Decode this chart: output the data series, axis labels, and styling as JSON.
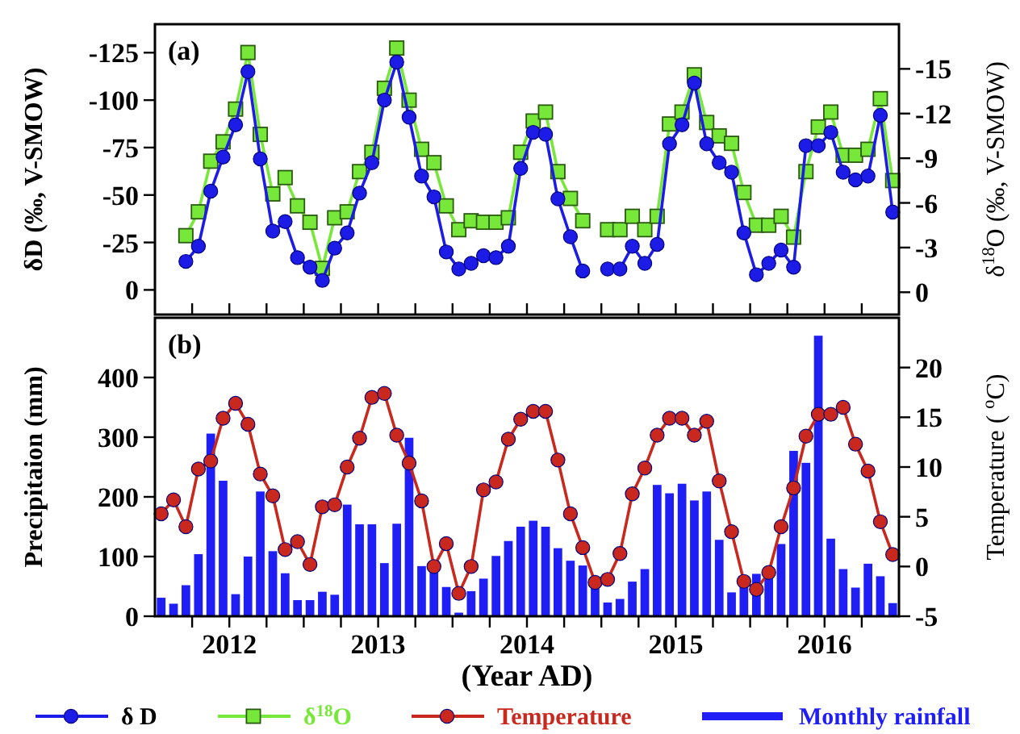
{
  "chart_data": [
    {
      "type": "line",
      "annotations": [
        "(a)"
      ],
      "ylabel": "δD (‰, V-SMOW)",
      "y2label": "δ$^{18}$O (‰, V-SMOW)",
      "x": [
        2011.708,
        2011.792,
        2011.875,
        2011.958,
        2012.042,
        2012.125,
        2012.208,
        2012.292,
        2012.375,
        2012.458,
        2012.542,
        2012.625,
        2012.708,
        2012.792,
        2012.875,
        2012.958,
        2013.042,
        2013.125,
        2013.208,
        2013.292,
        2013.375,
        2013.458,
        2013.542,
        2013.625,
        2013.708,
        2013.792,
        2013.875,
        2013.958,
        2014.042,
        2014.125,
        2014.208,
        2014.292,
        2014.375,
        2014.542,
        2014.625,
        2014.708,
        2014.792,
        2014.875,
        2014.958,
        2015.042,
        2015.125,
        2015.208,
        2015.292,
        2015.375,
        2015.458,
        2015.542,
        2015.625,
        2015.708,
        2015.792,
        2015.875,
        2015.958,
        2016.042,
        2016.125,
        2016.208,
        2016.292,
        2016.375,
        2016.458
      ],
      "xlim": [
        2011.5,
        2016.5
      ],
      "xticks": [
        {
          "value": 2011.75,
          "label": null
        },
        2012,
        {
          "value": 2012.25,
          "label": null
        },
        {
          "value": 2012.5,
          "label": null
        },
        {
          "value": 2012.75,
          "label": null
        },
        2013,
        {
          "value": 2013.25,
          "label": null
        },
        {
          "value": 2013.5,
          "label": null
        },
        {
          "value": 2013.75,
          "label": null
        },
        2014,
        {
          "value": 2014.25,
          "label": null
        },
        {
          "value": 2014.5,
          "label": null
        },
        {
          "value": 2014.75,
          "label": null
        },
        2015,
        {
          "value": 2015.25,
          "label": null
        },
        {
          "value": 2015.5,
          "label": null
        },
        {
          "value": 2015.75,
          "label": null
        },
        2016,
        {
          "value": 2016.25,
          "label": null
        }
      ],
      "ylim": [
        13,
        -140
      ],
      "yticks": [
        0,
        -25,
        -50,
        -75,
        -100,
        -125
      ],
      "y2lim": [
        1.5,
        -18
      ],
      "y2ticks": [
        0,
        -3,
        -6,
        -9,
        -12,
        -15
      ],
      "tick_labels": "y",
      "legend": "bottom",
      "line_style": "solid",
      "series": [
        {
          "name": "δ D",
          "color": "#1c1ce6",
          "marker": "circle",
          "values": [
            -15,
            -23,
            -52,
            -70,
            -87,
            -115,
            -69,
            -31,
            -36,
            -17,
            -12,
            -5,
            -22,
            -30,
            -51,
            -67,
            -100,
            -120,
            -91,
            -60,
            -49,
            -20,
            -11,
            -14,
            -18,
            -17,
            -23,
            -64,
            -83,
            -82,
            -48,
            -28,
            -10,
            -11,
            -11,
            -23,
            -14,
            -24,
            -77,
            -87,
            -109,
            -77,
            -67,
            -62,
            -30,
            -8,
            -14,
            -21,
            -12,
            -76,
            -76,
            -83,
            -62,
            -58,
            -60,
            -92,
            -41
          ]
        },
        {
          "name": "δ$^{18}$O",
          "color": "#77e83a",
          "marker": "square",
          "axis": "y2",
          "values": [
            -3.8,
            -5.4,
            -8.8,
            -10.1,
            -12.3,
            -16.1,
            -10.6,
            -6.6,
            -7.7,
            -5.8,
            -4.7,
            -1.6,
            -5.0,
            -5.4,
            -8.1,
            -9.4,
            -13.7,
            -16.4,
            -12.9,
            -9.6,
            -8.7,
            -5.8,
            -4.2,
            -4.8,
            -4.7,
            -4.7,
            -5.0,
            -9.4,
            -11.5,
            -12.1,
            -8.1,
            -6.3,
            -4.8,
            -4.2,
            -4.2,
            -5.1,
            -4.2,
            -5.1,
            -11.3,
            -12.1,
            -14.6,
            -11.4,
            -10.5,
            -10.0,
            -6.7,
            -4.5,
            -4.5,
            -5.1,
            -3.7,
            -8.1,
            -11.1,
            -12.1,
            -9.2,
            -9.2,
            -9.6,
            -13.0,
            -7.5
          ]
        }
      ]
    },
    {
      "type": "bar",
      "annotations": [
        "(b)"
      ],
      "xlabel": "(Year AD)",
      "ylabel": "Precipitaion (mm)",
      "y2label": "Temperature ( $^{o}$C)",
      "x": [
        2011.542,
        2011.625,
        2011.708,
        2011.792,
        2011.875,
        2011.958,
        2012.042,
        2012.125,
        2012.208,
        2012.292,
        2012.375,
        2012.458,
        2012.542,
        2012.625,
        2012.708,
        2012.792,
        2012.875,
        2012.958,
        2013.042,
        2013.125,
        2013.208,
        2013.292,
        2013.375,
        2013.458,
        2013.542,
        2013.625,
        2013.708,
        2013.792,
        2013.875,
        2013.958,
        2014.042,
        2014.125,
        2014.208,
        2014.292,
        2014.375,
        2014.458,
        2014.542,
        2014.625,
        2014.708,
        2014.792,
        2014.875,
        2014.958,
        2015.042,
        2015.125,
        2015.208,
        2015.292,
        2015.375,
        2015.458,
        2015.542,
        2015.625,
        2015.708,
        2015.792,
        2015.875,
        2015.958,
        2016.042,
        2016.125,
        2016.208,
        2016.292,
        2016.375,
        2016.458
      ],
      "xlim": [
        2011.5,
        2016.5
      ],
      "xticks": [
        {
          "value": 2011.75,
          "label": null
        },
        2012,
        {
          "value": 2012.25,
          "label": null
        },
        {
          "value": 2012.5,
          "label": null
        },
        {
          "value": 2012.75,
          "label": null
        },
        2013,
        {
          "value": 2013.25,
          "label": null
        },
        {
          "value": 2013.5,
          "label": null
        },
        {
          "value": 2013.75,
          "label": null
        },
        2014,
        {
          "value": 2014.25,
          "label": null
        },
        {
          "value": 2014.5,
          "label": null
        },
        {
          "value": 2014.75,
          "label": null
        },
        2015,
        {
          "value": 2015.25,
          "label": null
        },
        {
          "value": 2015.5,
          "label": null
        },
        {
          "value": 2015.75,
          "label": null
        },
        2016,
        {
          "value": 2016.25,
          "label": null
        }
      ],
      "ylim": [
        0,
        500
      ],
      "yticks": [
        0,
        100,
        200,
        300,
        400
      ],
      "y2lim": [
        -5,
        25
      ],
      "y2ticks": [
        -5,
        0,
        5,
        10,
        15,
        20
      ],
      "legend": "bottom",
      "series": [
        {
          "name": "Temperature",
          "type": "line",
          "color": "#c8281e",
          "marker": "circle",
          "axis": "y2",
          "values": [
            5.3,
            6.7,
            4.0,
            9.8,
            10.6,
            14.9,
            16.4,
            14.3,
            9.3,
            7.1,
            1.7,
            2.5,
            0.2,
            6.0,
            6.2,
            10.0,
            12.9,
            17.0,
            17.4,
            13.2,
            10.4,
            6.6,
            0.0,
            2.3,
            -2.7,
            0.0,
            7.7,
            8.5,
            12.8,
            14.8,
            15.6,
            15.6,
            10.7,
            5.3,
            1.9,
            -1.6,
            -1.3,
            1.3,
            7.3,
            9.9,
            13.2,
            14.9,
            14.9,
            13.2,
            14.6,
            8.6,
            3.5,
            -1.5,
            -2.3,
            -0.6,
            4.0,
            7.9,
            13.1,
            15.3,
            15.3,
            16.0,
            12.3,
            9.6,
            4.5,
            1.2
          ]
        },
        {
          "name": "Monthly rainfall",
          "color": "#1f1ff5",
          "values": [
            31,
            21,
            52,
            104,
            306,
            227,
            37,
            100,
            209,
            109,
            72,
            27,
            27,
            41,
            36,
            187,
            154,
            154,
            89,
            155,
            299,
            84,
            93,
            49,
            6,
            42,
            63,
            101,
            126,
            150,
            160,
            150,
            114,
            93,
            85,
            49,
            23,
            29,
            58,
            79,
            220,
            206,
            222,
            194,
            209,
            128,
            40,
            52,
            71,
            83,
            121,
            277,
            257,
            470,
            130,
            79,
            48,
            88,
            67,
            22
          ]
        }
      ]
    }
  ]
}
